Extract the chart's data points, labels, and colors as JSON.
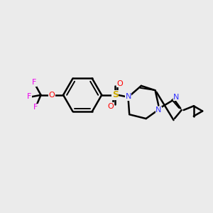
{
  "background_color": "#ebebeb",
  "bond_color": "#000000",
  "nitrogen_color": "#3333ff",
  "oxygen_color": "#ff0000",
  "sulfur_color": "#ccaa00",
  "fluorine_color": "#ee00ee",
  "figsize": [
    3.0,
    3.0
  ],
  "dpi": 100,
  "xlim": [
    0,
    10
  ],
  "ylim": [
    0,
    10
  ]
}
